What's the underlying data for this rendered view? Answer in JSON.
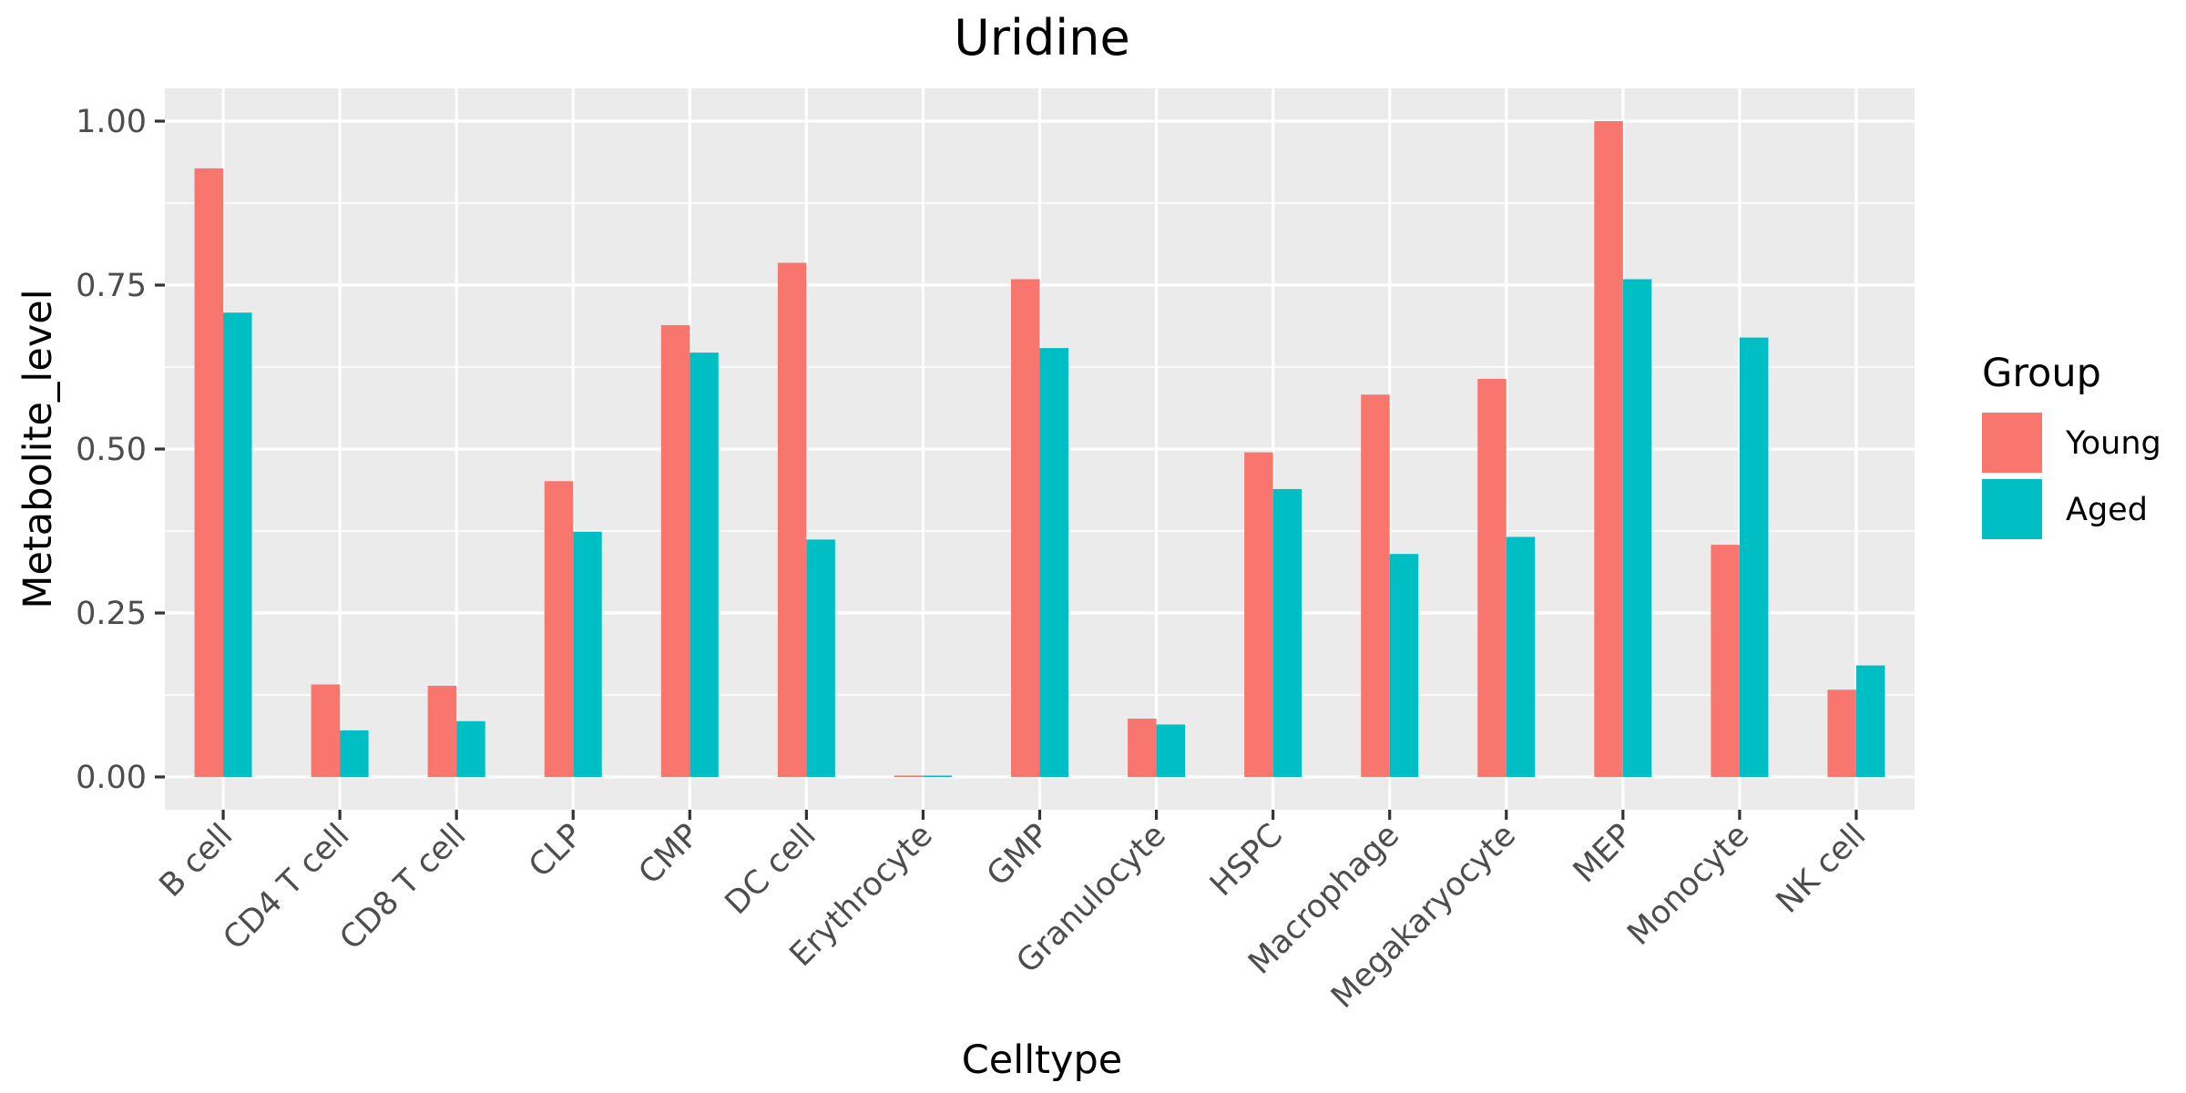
{
  "chart_data": {
    "type": "bar",
    "title": "Uridine",
    "xlabel": "Celltype",
    "ylabel": "Metabolite_level",
    "ylim": [
      -0.05,
      1.05
    ],
    "yticks": [
      0.0,
      0.25,
      0.5,
      0.75,
      1.0
    ],
    "ytick_labels": [
      "0.00",
      "0.25",
      "0.50",
      "0.75",
      "1.00"
    ],
    "grid": true,
    "legend": {
      "title": "Group",
      "position": "right"
    },
    "categories": [
      "B cell",
      "CD4 T cell",
      "CD8 T cell",
      "CLP",
      "CMP",
      "DC cell",
      "Erythrocyte",
      "GMP",
      "Granulocyte",
      "HSPC",
      "Macrophage",
      "Megakaryocyte",
      "MEP",
      "Monocyte",
      "NK cell"
    ],
    "series": [
      {
        "name": "Young",
        "color": "#F8766D",
        "values": [
          0.928,
          0.141,
          0.139,
          0.451,
          0.689,
          0.784,
          0.0,
          0.759,
          0.089,
          0.495,
          0.583,
          0.607,
          1.0,
          0.354,
          0.133
        ]
      },
      {
        "name": "Aged",
        "color": "#00BFC4",
        "values": [
          0.708,
          0.071,
          0.085,
          0.374,
          0.647,
          0.362,
          0.002,
          0.654,
          0.08,
          0.439,
          0.34,
          0.366,
          0.759,
          0.67,
          0.17
        ]
      }
    ]
  }
}
